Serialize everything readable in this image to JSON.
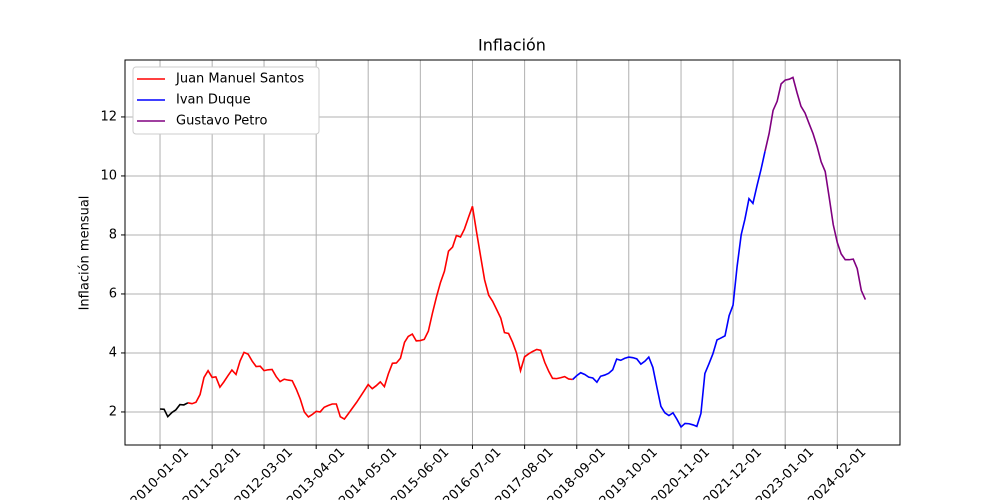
{
  "chart_data": {
    "type": "line",
    "title": "Inflación",
    "ylabel": "Inflación mensual",
    "ylim": [
      0.88,
      13.93
    ],
    "yticks": [
      2,
      4,
      6,
      8,
      10,
      12
    ],
    "xlim": [
      "2009-04-10",
      "2025-05-22"
    ],
    "xticks": [
      "2010-01-01",
      "2011-02-01",
      "2012-03-01",
      "2013-04-01",
      "2014-05-01",
      "2015-06-01",
      "2016-07-01",
      "2017-08-01",
      "2018-09-01",
      "2019-10-01",
      "2020-11-01",
      "2021-12-01",
      "2023-01-01",
      "2024-02-01"
    ],
    "grid": true,
    "legend": "upper left",
    "series": [
      {
        "color": "#000000",
        "x": [
          "2010-01-01",
          "2010-02-01",
          "2010-03-01",
          "2010-04-01",
          "2010-05-01",
          "2010-06-01",
          "2010-07-01",
          "2010-08-01"
        ],
        "values": [
          2.1,
          2.09,
          1.84,
          1.98,
          2.07,
          2.25,
          2.24,
          2.31
        ]
      },
      {
        "name": "Juan Manuel Santos",
        "color": "#ff0000",
        "x": [
          "2010-08-01",
          "2010-09-01",
          "2010-10-01",
          "2010-11-01",
          "2010-12-01",
          "2011-01-01",
          "2011-02-01",
          "2011-03-01",
          "2011-04-01",
          "2011-05-01",
          "2011-06-01",
          "2011-07-01",
          "2011-08-01",
          "2011-09-01",
          "2011-10-01",
          "2011-11-01",
          "2011-12-01",
          "2012-01-01",
          "2012-02-01",
          "2012-03-01",
          "2012-04-01",
          "2012-05-01",
          "2012-06-01",
          "2012-07-01",
          "2012-08-01",
          "2012-09-01",
          "2012-10-01",
          "2012-11-01",
          "2012-12-01",
          "2013-01-01",
          "2013-02-01",
          "2013-03-01",
          "2013-04-01",
          "2013-05-01",
          "2013-06-01",
          "2013-07-01",
          "2013-08-01",
          "2013-09-01",
          "2013-10-01",
          "2013-11-01",
          "2013-12-01",
          "2014-01-01",
          "2014-02-01",
          "2014-03-01",
          "2014-04-01",
          "2014-05-01",
          "2014-06-01",
          "2014-07-01",
          "2014-08-01",
          "2014-09-01",
          "2014-10-01",
          "2014-11-01",
          "2014-12-01",
          "2015-01-01",
          "2015-02-01",
          "2015-03-01",
          "2015-04-01",
          "2015-05-01",
          "2015-06-01",
          "2015-07-01",
          "2015-08-01",
          "2015-09-01",
          "2015-10-01",
          "2015-11-01",
          "2015-12-01",
          "2016-01-01",
          "2016-02-01",
          "2016-03-01",
          "2016-04-01",
          "2016-05-01",
          "2016-06-01",
          "2016-07-01",
          "2016-08-01",
          "2016-09-01",
          "2016-10-01",
          "2016-11-01",
          "2016-12-01",
          "2017-01-01",
          "2017-02-01",
          "2017-03-01",
          "2017-04-01",
          "2017-05-01",
          "2017-06-01",
          "2017-07-01",
          "2017-08-01",
          "2017-09-01",
          "2017-10-01",
          "2017-11-01",
          "2017-12-01",
          "2018-01-01",
          "2018-02-01",
          "2018-03-01",
          "2018-04-01",
          "2018-05-01",
          "2018-06-01",
          "2018-07-01",
          "2018-08-01"
        ],
        "values": [
          2.31,
          2.28,
          2.33,
          2.59,
          3.17,
          3.4,
          3.17,
          3.19,
          2.84,
          3.02,
          3.23,
          3.42,
          3.27,
          3.73,
          4.02,
          3.96,
          3.73,
          3.54,
          3.55,
          3.4,
          3.43,
          3.44,
          3.2,
          3.03,
          3.11,
          3.08,
          3.06,
          2.77,
          2.44,
          2.0,
          1.83,
          1.91,
          2.02,
          2.0,
          2.16,
          2.22,
          2.27,
          2.27,
          1.84,
          1.76,
          1.94,
          2.13,
          2.32,
          2.51,
          2.72,
          2.93,
          2.79,
          2.89,
          3.02,
          2.86,
          3.29,
          3.65,
          3.66,
          3.82,
          4.36,
          4.56,
          4.64,
          4.41,
          4.42,
          4.46,
          4.74,
          5.35,
          5.89,
          6.39,
          6.77,
          7.45,
          7.59,
          7.98,
          7.93,
          8.2,
          8.6,
          8.97,
          8.1,
          7.27,
          6.48,
          5.96,
          5.75,
          5.47,
          5.18,
          4.69,
          4.66,
          4.37,
          3.99,
          3.4,
          3.87,
          3.97,
          4.05,
          4.12,
          4.09,
          3.68,
          3.37,
          3.14,
          3.13,
          3.16,
          3.2,
          3.12,
          3.1
        ]
      },
      {
        "name": "Ivan Duque",
        "color": "#0000ff",
        "x": [
          "2018-08-01",
          "2018-09-01",
          "2018-10-01",
          "2018-11-01",
          "2018-12-01",
          "2019-01-01",
          "2019-02-01",
          "2019-03-01",
          "2019-04-01",
          "2019-05-01",
          "2019-06-01",
          "2019-07-01",
          "2019-08-01",
          "2019-09-01",
          "2019-10-01",
          "2019-11-01",
          "2019-12-01",
          "2020-01-01",
          "2020-02-01",
          "2020-03-01",
          "2020-04-01",
          "2020-05-01",
          "2020-06-01",
          "2020-07-01",
          "2020-08-01",
          "2020-09-01",
          "2020-10-01",
          "2020-11-01",
          "2020-12-01",
          "2021-01-01",
          "2021-02-01",
          "2021-03-01",
          "2021-04-01",
          "2021-05-01",
          "2021-06-01",
          "2021-07-01",
          "2021-08-01",
          "2021-09-01",
          "2021-10-01",
          "2021-11-01",
          "2021-12-01",
          "2022-01-01",
          "2022-02-01",
          "2022-03-01",
          "2022-04-01",
          "2022-05-01",
          "2022-06-01",
          "2022-07-01",
          "2022-08-01"
        ],
        "values": [
          3.1,
          3.23,
          3.33,
          3.27,
          3.18,
          3.15,
          3.01,
          3.21,
          3.25,
          3.31,
          3.43,
          3.79,
          3.75,
          3.82,
          3.86,
          3.84,
          3.8,
          3.62,
          3.72,
          3.86,
          3.51,
          2.85,
          2.19,
          1.97,
          1.88,
          1.97,
          1.75,
          1.49,
          1.61,
          1.6,
          1.56,
          1.51,
          1.95,
          3.3,
          3.63,
          3.97,
          4.44,
          4.51,
          4.58,
          5.26,
          5.62,
          6.94,
          8.01,
          8.53,
          9.23,
          9.07,
          9.67,
          10.21,
          10.84
        ]
      },
      {
        "name": "Gustavo Petro",
        "color": "#800080",
        "x": [
          "2022-08-01",
          "2022-09-01",
          "2022-10-01",
          "2022-11-01",
          "2022-12-01",
          "2023-01-01",
          "2023-02-01",
          "2023-03-01",
          "2023-04-01",
          "2023-05-01",
          "2023-06-01",
          "2023-07-01",
          "2023-08-01",
          "2023-09-01",
          "2023-10-01",
          "2023-11-01",
          "2023-12-01",
          "2024-01-01",
          "2024-02-01",
          "2024-03-01",
          "2024-04-01",
          "2024-05-01",
          "2024-06-01",
          "2024-07-01",
          "2024-08-01",
          "2024-09-01"
        ],
        "values": [
          10.84,
          11.44,
          12.22,
          12.53,
          13.12,
          13.25,
          13.28,
          13.34,
          12.82,
          12.36,
          12.13,
          11.78,
          11.43,
          10.99,
          10.48,
          10.15,
          9.28,
          8.35,
          7.74,
          7.36,
          7.16,
          7.16,
          7.18,
          6.86,
          6.12,
          5.81
        ]
      }
    ]
  }
}
